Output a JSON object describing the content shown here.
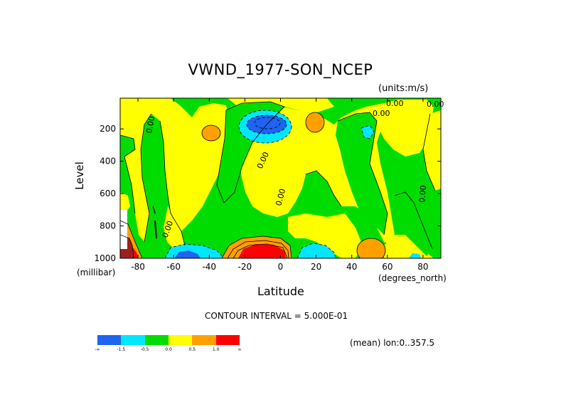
{
  "chart_data": {
    "type": "heatmap",
    "title": "VWND_1977-SON_NCEP",
    "units": "(units:m/s)",
    "xlabel": "Latitude",
    "x_unit": "(degrees_north)",
    "ylabel": "Level",
    "y_unit": "(millibar)",
    "x_range": [
      -90,
      90
    ],
    "y_range": [
      1000,
      10
    ],
    "y_reversed": true,
    "x_ticks": [
      "-80",
      "-60",
      "-40",
      "-20",
      "0",
      "20",
      "40",
      "60",
      "80"
    ],
    "x_tick_values": [
      -80,
      -60,
      -40,
      -20,
      0,
      20,
      40,
      60,
      80
    ],
    "y_ticks": [
      "200",
      "400",
      "600",
      "800",
      "1000"
    ],
    "y_tick_values": [
      200,
      400,
      600,
      800,
      1000
    ],
    "contour_interval": "CONTOUR INTERVAL = 5.000E-01",
    "contour_labels": [
      "0.00",
      "0.00",
      "0.00",
      "0.00",
      "0.00",
      "0.00",
      "0.00",
      "0.00"
    ],
    "mean_label": "(mean) lon:0..357.5",
    "legend": {
      "colors": [
        "#1e64f0",
        "#00e6ff",
        "#00dc00",
        "#ffff00",
        "#ffa000",
        "#ff0000"
      ],
      "labels": [
        "-∞",
        "-1.5",
        "-0.5",
        "0.0",
        "0.5",
        "1.0",
        "∞"
      ]
    },
    "colors": {
      "dark_blue": "#1e64f0",
      "cyan": "#00e6ff",
      "green": "#00dc00",
      "yellow": "#ffff00",
      "orange": "#ffa000",
      "red": "#ff0000",
      "dark_red": "#a01e1e"
    }
  }
}
